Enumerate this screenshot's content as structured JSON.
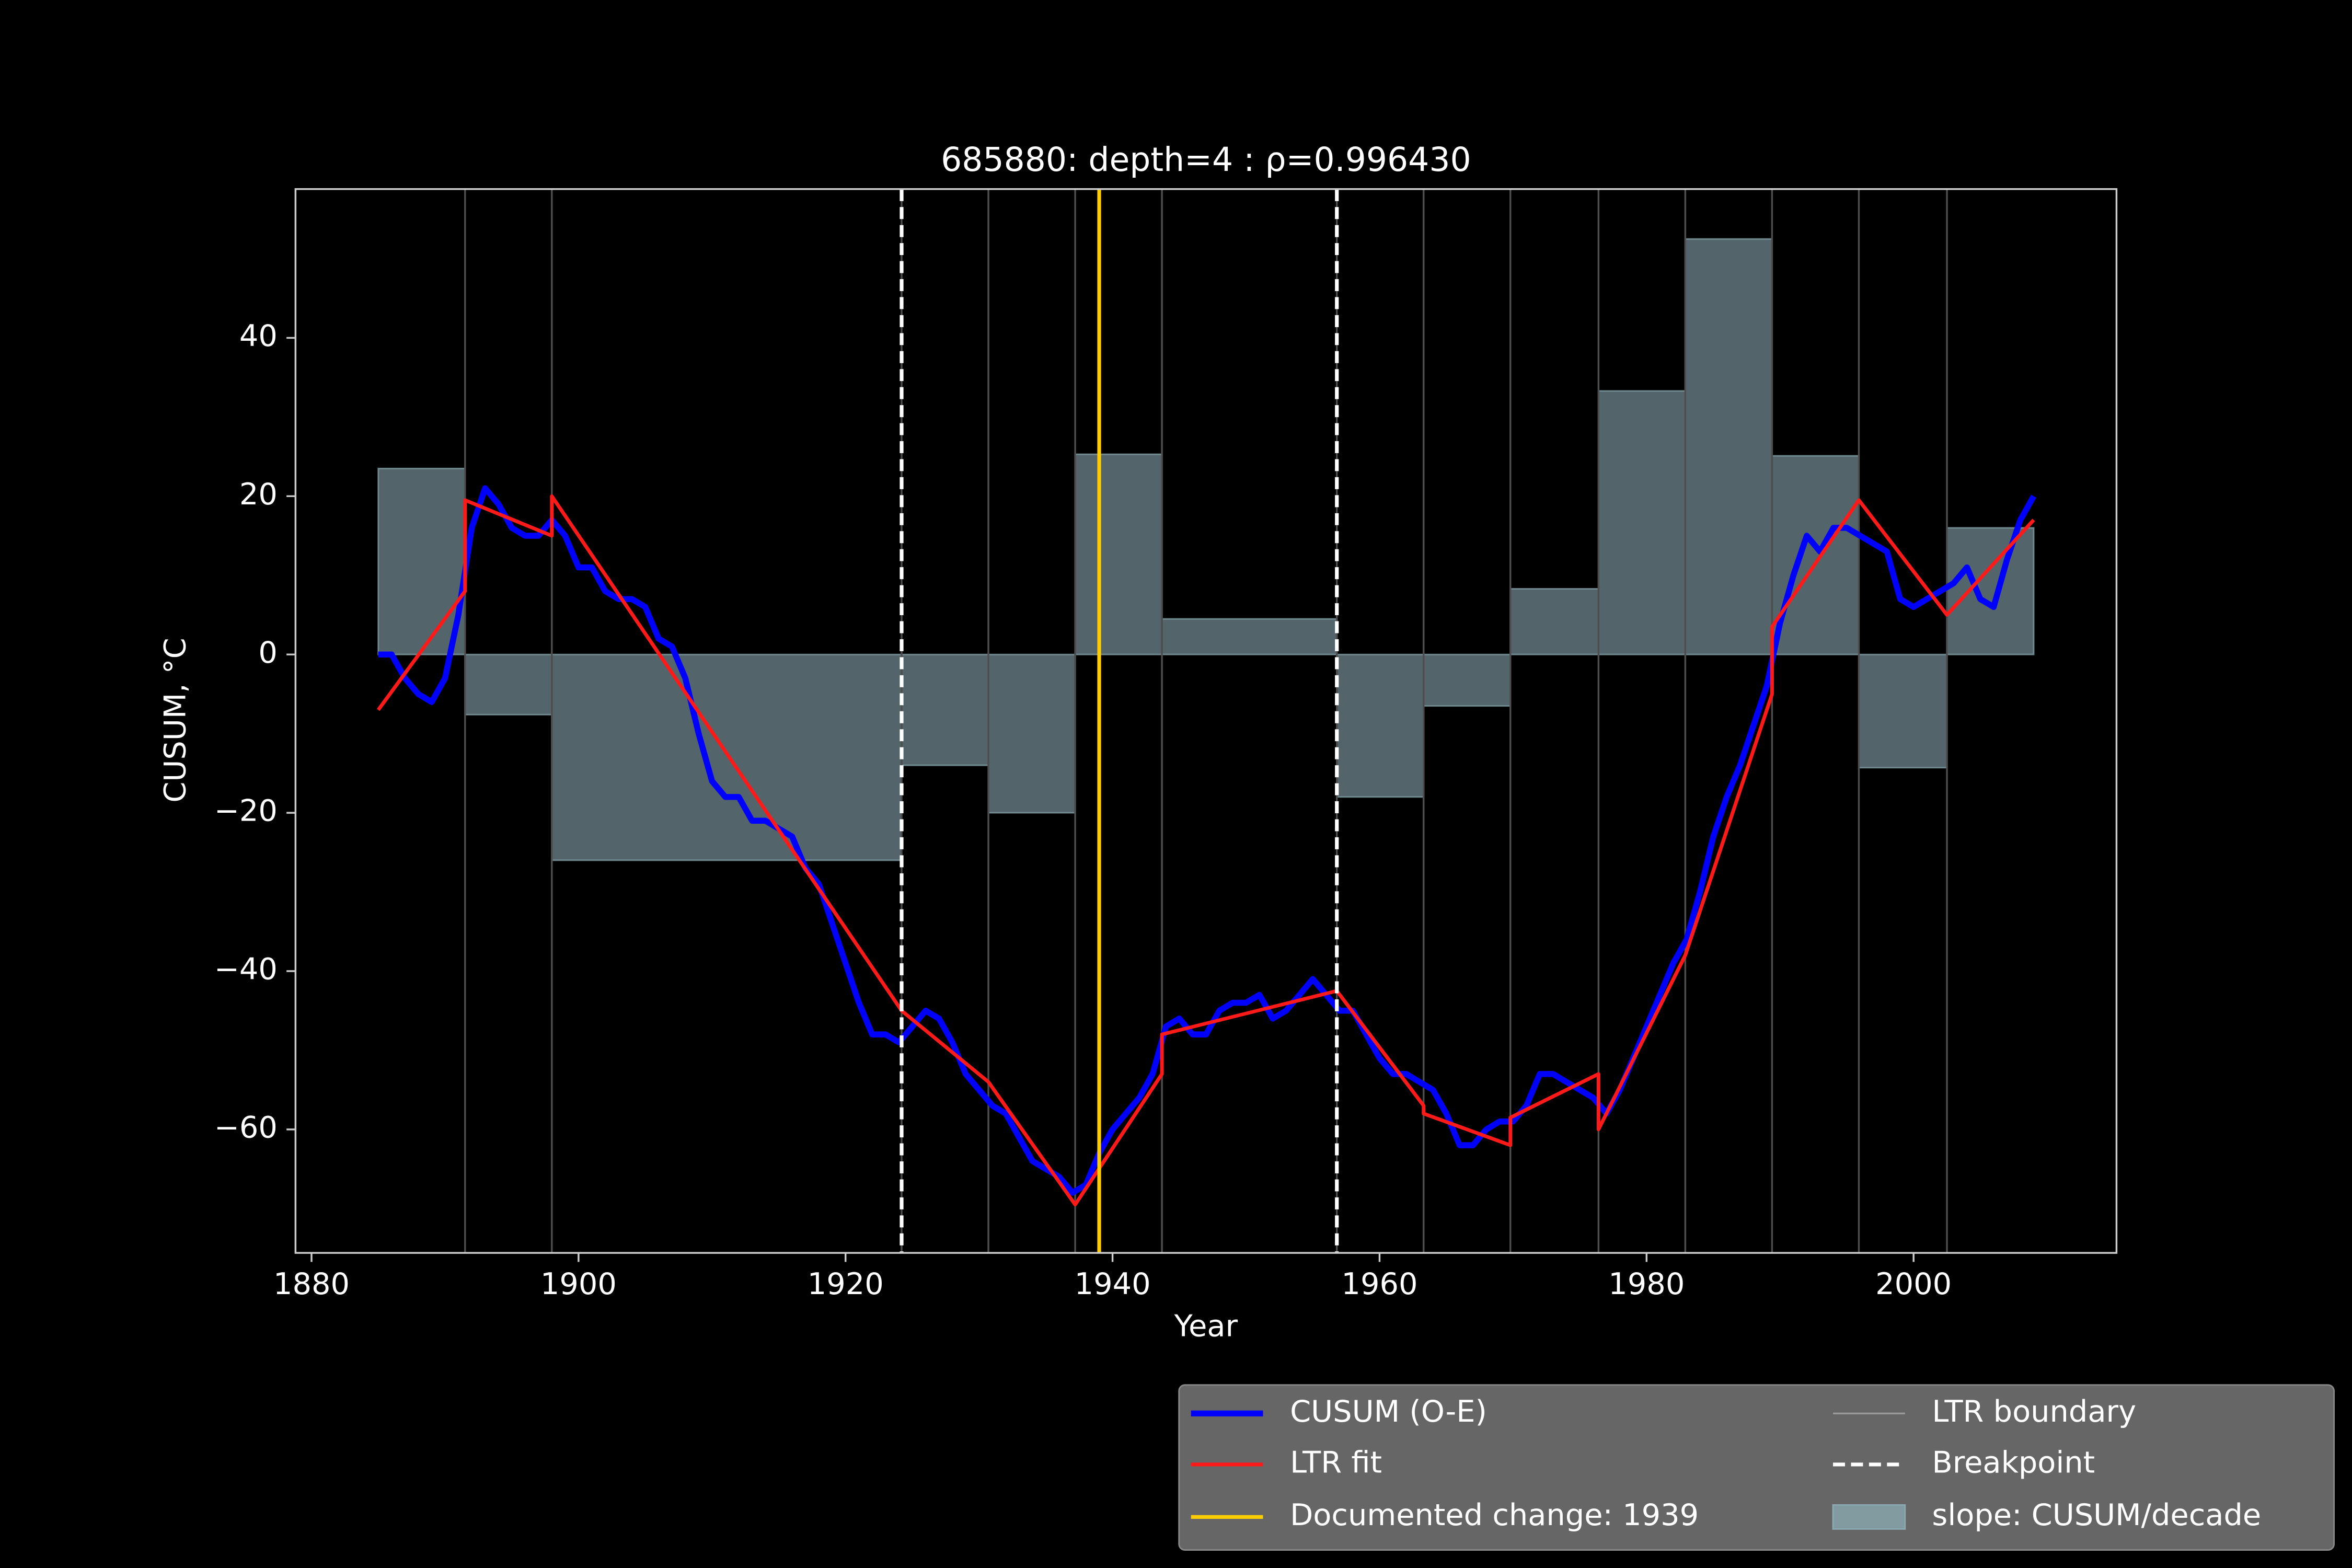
{
  "chart_data": {
    "type": "line",
    "title": "685880: depth=4 : ρ=0.996430",
    "xlabel": "Year",
    "ylabel": "CUSUM, °C",
    "xlim": [
      1878.8,
      2015.2
    ],
    "ylim": [
      -75.6,
      58.8
    ],
    "xticks": [
      1880,
      1900,
      1920,
      1940,
      1960,
      1980,
      2000
    ],
    "yticks": [
      {
        "value": -60,
        "label": "−60"
      },
      {
        "value": -40,
        "label": "−40"
      },
      {
        "value": -20,
        "label": "−20"
      },
      0,
      20,
      40
    ],
    "series": [
      {
        "name": "CUSUM (O-E)",
        "color": "#0000ff",
        "x": [
          1885,
          1886,
          1887,
          1888,
          1889,
          1890,
          1891,
          1892,
          1893,
          1894,
          1895,
          1896,
          1897,
          1898,
          1899,
          1900,
          1901,
          1902,
          1903,
          1904,
          1905,
          1906,
          1907,
          1908,
          1909,
          1910,
          1911,
          1912,
          1913,
          1914,
          1915,
          1916,
          1917,
          1918,
          1919,
          1920,
          1921,
          1922,
          1923,
          1924,
          1925,
          1926,
          1927,
          1928,
          1929,
          1930,
          1931,
          1932,
          1933,
          1934,
          1935,
          1936,
          1937,
          1938,
          1939,
          1940,
          1941,
          1942,
          1943,
          1944,
          1945,
          1946,
          1947,
          1948,
          1949,
          1950,
          1951,
          1952,
          1953,
          1954,
          1955,
          1956,
          1957,
          1958,
          1959,
          1960,
          1961,
          1962,
          1963,
          1964,
          1965,
          1966,
          1967,
          1968,
          1969,
          1970,
          1971,
          1972,
          1973,
          1974,
          1975,
          1976,
          1977,
          1978,
          1979,
          1980,
          1981,
          1982,
          1983,
          1984,
          1985,
          1986,
          1987,
          1988,
          1989,
          1990,
          1991,
          1992,
          1993,
          1994,
          1995,
          1996,
          1997,
          1998,
          1999,
          2000,
          2001,
          2002,
          2003,
          2004,
          2005,
          2006,
          2007,
          2008,
          2009
        ],
        "values": [
          0,
          0,
          -3,
          -5,
          -6,
          -3,
          5,
          16,
          21,
          19,
          16,
          15,
          15,
          17,
          15,
          11,
          11,
          8,
          7,
          7,
          6,
          2,
          1,
          -3,
          -10,
          -16,
          -18,
          -18,
          -21,
          -21,
          -22,
          -23,
          -27,
          -29,
          -34,
          -39,
          -44,
          -48,
          -48,
          -49,
          -47,
          -45,
          -46,
          -49,
          -53,
          -55,
          -57,
          -58,
          -61,
          -64,
          -65,
          -66,
          -68,
          -67,
          -63,
          -60,
          -58,
          -56,
          -53,
          -47,
          -46,
          -48,
          -48,
          -45,
          -44,
          -44,
          -43,
          -46,
          -45,
          -43,
          -41,
          -43,
          -45,
          -45,
          -48,
          -51,
          -53,
          -53,
          -54,
          -55,
          -58,
          -62,
          -62,
          -60,
          -59,
          -59,
          -57,
          -53,
          -53,
          -54,
          -55,
          -56,
          -58,
          -55,
          -51,
          -47,
          -43,
          -39,
          -36,
          -30,
          -23,
          -18,
          -14,
          -9,
          -4,
          4,
          10,
          15,
          13,
          16,
          16,
          15,
          14,
          13,
          7,
          6,
          7,
          8,
          9,
          11,
          7,
          6,
          12,
          17,
          20
        ]
      },
      {
        "name": "LTR fit",
        "color": "#ff1a1a",
        "x": [
          1885,
          1891.5,
          1891.5,
          1898,
          1898,
          1924.2,
          1930.7,
          1937.2,
          1943.7,
          1943.7,
          1956.8,
          1963.3,
          1963.3,
          1969.8,
          1969.8,
          1976.4,
          1976.4,
          1982.9,
          1989.4,
          1989.4,
          1995.9,
          2002.5,
          2009
        ],
        "values": [
          -7,
          8,
          19.5,
          15,
          20,
          -45,
          -54,
          -69.5,
          -53,
          -48,
          -42.5,
          -57,
          -58,
          -62,
          -58.5,
          -53,
          -60,
          -38,
          -5,
          3.5,
          19.5,
          5,
          17
        ]
      }
    ],
    "documented": {
      "name": "Documented change: 1939",
      "color": "#ffcc00",
      "x": 1939
    },
    "boundaries": {
      "name": "LTR boundary",
      "color": "#4d4d4d",
      "x": [
        1891.5,
        1898,
        1924.2,
        1930.7,
        1937.2,
        1943.7,
        1956.8,
        1963.3,
        1969.8,
        1976.4,
        1982.9,
        1989.4,
        1995.9,
        2002.5
      ]
    },
    "breakpoints": {
      "name": "Breakpoint",
      "color": "#ffffff",
      "x": [
        1924.2,
        1956.8
      ]
    },
    "slope": {
      "name": "slope: CUSUM/decade",
      "color": "#8aa9b0",
      "bins": [
        1885,
        1891.5,
        1898,
        1924.2,
        1930.7,
        1937.2,
        1943.7,
        1956.8,
        1963.3,
        1969.8,
        1976.4,
        1982.9,
        1989.4,
        1995.9,
        2002.5,
        2009
      ],
      "values": [
        23.5,
        -7.6,
        -26,
        -14,
        -20,
        25.3,
        4.5,
        -18,
        -6.5,
        8.3,
        33.3,
        52.5,
        25.1,
        -14.3,
        16
      ]
    }
  }
}
